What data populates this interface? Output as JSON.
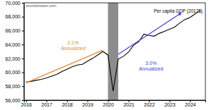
{
  "chart_data": {
    "type": "line",
    "title": "Per capita GDP (2017$)",
    "subtitle": "econbrowser.com",
    "xlim": [
      2015.9,
      2024.75
    ],
    "xticks": [
      2016,
      2017,
      2018,
      2019,
      2020,
      2021,
      2022,
      2023,
      2024
    ],
    "ylim": [
      56000,
      70000
    ],
    "yticks": [
      {
        "value": 56000,
        "label": "56,000"
      },
      {
        "value": 58000,
        "label": "58,000"
      },
      {
        "value": 60000,
        "label": "60,000"
      },
      {
        "value": 62000,
        "label": "62,000"
      },
      {
        "value": 64000,
        "label": "64,000"
      },
      {
        "value": 66000,
        "label": "66,000"
      },
      {
        "value": 68000,
        "label": "68,000"
      },
      {
        "value": 70000,
        "label": "70,000"
      }
    ],
    "grid": false,
    "shaded_regions": [
      {
        "x0": 2020.0,
        "x1": 2020.5,
        "color": "#8c8c8c"
      }
    ],
    "series": [
      {
        "color": "#000000",
        "x": [
          2016,
          2016.25,
          2016.5,
          2016.75,
          2017,
          2017.25,
          2017.5,
          2017.75,
          2018,
          2018.25,
          2018.5,
          2018.75,
          2019,
          2019.25,
          2019.5,
          2019.75,
          2020,
          2020.25,
          2020.5,
          2020.75,
          2021,
          2021.25,
          2021.5,
          2021.75,
          2022,
          2022.25,
          2022.5,
          2022.75,
          2023,
          2023.25,
          2023.5,
          2023.75,
          2024,
          2024.25,
          2024.5
        ],
        "values": [
          58600,
          58700,
          58850,
          59000,
          59200,
          59450,
          59700,
          60100,
          60450,
          60800,
          61050,
          61150,
          61600,
          62000,
          62500,
          63000,
          62500,
          57300,
          61900,
          62300,
          62900,
          63900,
          64400,
          65500,
          65300,
          65200,
          65600,
          65900,
          66200,
          66500,
          67100,
          67600,
          67900,
          68400,
          68900
        ]
      },
      {
        "color": "#f0882a",
        "x": [
          2016,
          2019.75
        ],
        "values": [
          58500,
          63200
        ]
      },
      {
        "color": "#4444e0",
        "x": [
          2020.5,
          2023.5
        ],
        "values": [
          62600,
          68400
        ],
        "marker": "circle"
      }
    ],
    "annotations": [
      {
        "text": "2.1%",
        "x": 2018.3,
        "y": 64000,
        "color": "#f0882a"
      },
      {
        "text": "Annualized",
        "x": 2018.3,
        "y": 63200,
        "color": "#f0882a"
      },
      {
        "text": "3.0%",
        "x": 2022.1,
        "y": 61100,
        "color": "#4444e0"
      },
      {
        "text": "Annualized",
        "x": 2022.1,
        "y": 60300,
        "color": "#4444e0"
      }
    ]
  }
}
